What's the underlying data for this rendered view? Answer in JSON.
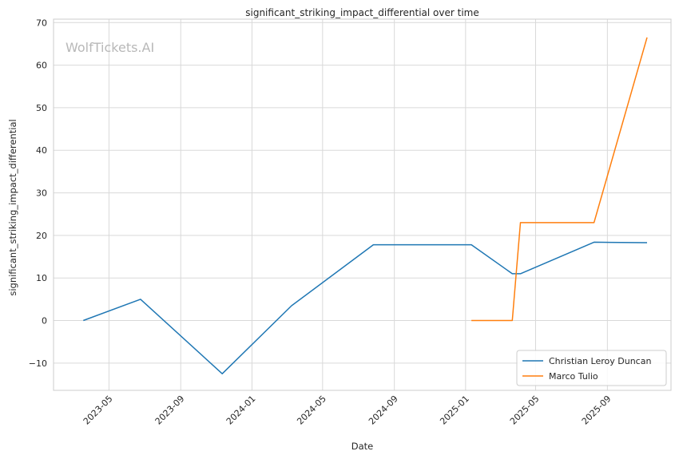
{
  "chart_data": {
    "type": "line",
    "title": "significant_striking_impact_differential over time",
    "xlabel": "Date",
    "ylabel": "significant_striking_impact_differential",
    "watermark": "WolfTickets.AI",
    "x_ticks": [
      "2023-05",
      "2023-09",
      "2024-01",
      "2024-05",
      "2024-09",
      "2025-01",
      "2025-05",
      "2025-09"
    ],
    "y_ticks": [
      -10,
      0,
      10,
      20,
      30,
      40,
      50,
      60,
      70
    ],
    "xlim": [
      "2023-01-26",
      "2025-12-19"
    ],
    "ylim": [
      -16.4,
      70.8
    ],
    "grid": true,
    "legend": "lower-right",
    "series": [
      {
        "name": "Christian Leroy Duncan",
        "color": "#1f77b4",
        "points": [
          {
            "x": "2023-03-18",
            "y": 0
          },
          {
            "x": "2023-06-24",
            "y": 5
          },
          {
            "x": "2023-11-11",
            "y": -12.5
          },
          {
            "x": "2024-03-09",
            "y": 3.5
          },
          {
            "x": "2024-07-27",
            "y": 17.8
          },
          {
            "x": "2025-01-11",
            "y": 17.8
          },
          {
            "x": "2025-03-22",
            "y": 11
          },
          {
            "x": "2025-04-05",
            "y": 11
          },
          {
            "x": "2025-08-09",
            "y": 18.4
          },
          {
            "x": "2025-11-08",
            "y": 18.3
          }
        ]
      },
      {
        "name": "Marco Tulio",
        "color": "#ff7f0e",
        "points": [
          {
            "x": "2025-01-11",
            "y": 0
          },
          {
            "x": "2025-03-22",
            "y": 0
          },
          {
            "x": "2025-04-05",
            "y": 23
          },
          {
            "x": "2025-08-09",
            "y": 23
          },
          {
            "x": "2025-11-08",
            "y": 66.5
          }
        ]
      }
    ]
  }
}
